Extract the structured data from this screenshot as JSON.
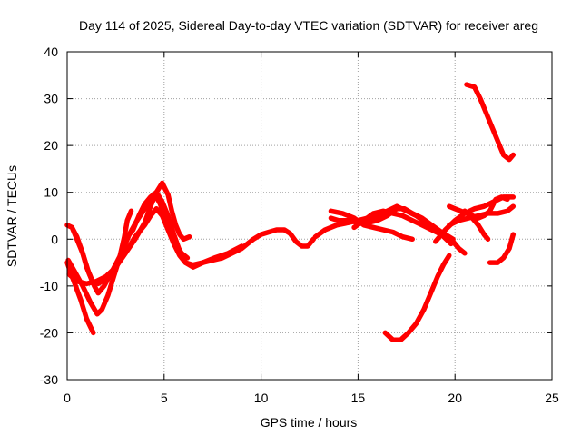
{
  "chart_data": {
    "type": "scatter",
    "title": "Day 114 of 2025, Sidereal Day-to-day VTEC variation (SDTVAR) for receiver areg",
    "xlabel": "GPS time / hours",
    "ylabel": "SDTVAR / TECUs",
    "xlim": [
      0,
      25
    ],
    "ylim": [
      -30,
      40
    ],
    "xticks": [
      0,
      5,
      10,
      15,
      20,
      25
    ],
    "yticks": [
      -30,
      -20,
      -10,
      0,
      10,
      20,
      30,
      40
    ],
    "grid": true,
    "marker_color": "#ff0000",
    "series": [
      {
        "name": "track-1",
        "points": [
          [
            0.0,
            3.0
          ],
          [
            0.25,
            2.5
          ],
          [
            0.5,
            0.5
          ],
          [
            0.8,
            -3.0
          ],
          [
            1.1,
            -7.0
          ],
          [
            1.4,
            -10.0
          ],
          [
            1.6,
            -11.5
          ],
          [
            1.9,
            -10.0
          ],
          [
            2.3,
            -7.0
          ],
          [
            2.8,
            -3.0
          ],
          [
            3.2,
            1.0
          ],
          [
            3.6,
            4.0
          ],
          [
            4.0,
            6.5
          ],
          [
            4.3,
            8.5
          ],
          [
            4.6,
            9.0
          ],
          [
            4.8,
            7.5
          ],
          [
            5.0,
            5.0
          ],
          [
            5.3,
            2.0
          ],
          [
            5.6,
            -1.0
          ],
          [
            5.9,
            -3.0
          ],
          [
            6.2,
            -4.0
          ]
        ]
      },
      {
        "name": "track-2",
        "points": [
          [
            0.0,
            -5.0
          ],
          [
            0.3,
            -8.5
          ],
          [
            0.7,
            -13.0
          ],
          [
            1.0,
            -17.0
          ],
          [
            1.35,
            -20.0
          ]
        ]
      },
      {
        "name": "track-3",
        "points": [
          [
            0.05,
            -4.5
          ],
          [
            0.4,
            -7.0
          ],
          [
            0.8,
            -10.0
          ],
          [
            1.2,
            -13.5
          ],
          [
            1.55,
            -16.0
          ],
          [
            1.8,
            -15.0
          ],
          [
            2.1,
            -12.0
          ],
          [
            2.4,
            -8.0
          ],
          [
            2.7,
            -4.0
          ],
          [
            2.95,
            0.5
          ],
          [
            3.1,
            4.0
          ],
          [
            3.3,
            6.0
          ]
        ]
      },
      {
        "name": "track-4",
        "points": [
          [
            0.3,
            2.0
          ],
          [
            0.5,
            0.0
          ],
          [
            0.8,
            -3.0
          ],
          [
            1.0,
            -6.0
          ],
          [
            1.3,
            -9.0
          ],
          [
            1.6,
            -9.5
          ],
          [
            2.0,
            -8.5
          ],
          [
            2.5,
            -6.0
          ],
          [
            3.0,
            -3.0
          ],
          [
            3.5,
            0.0
          ],
          [
            4.0,
            3.5
          ],
          [
            4.3,
            7.0
          ],
          [
            4.6,
            10.0
          ],
          [
            4.9,
            12.0
          ],
          [
            5.2,
            9.5
          ],
          [
            5.4,
            6.0
          ],
          [
            5.6,
            3.0
          ],
          [
            5.8,
            1.0
          ],
          [
            6.0,
            0.0
          ],
          [
            6.3,
            0.5
          ]
        ]
      },
      {
        "name": "track-5",
        "points": [
          [
            0.1,
            -7.5
          ],
          [
            0.5,
            -9.0
          ],
          [
            1.0,
            -9.5
          ],
          [
            1.5,
            -9.0
          ],
          [
            2.0,
            -8.0
          ],
          [
            2.5,
            -6.0
          ],
          [
            3.0,
            -3.0
          ],
          [
            3.5,
            0.5
          ],
          [
            4.0,
            3.0
          ],
          [
            4.3,
            5.0
          ],
          [
            4.6,
            6.5
          ],
          [
            4.9,
            5.0
          ],
          [
            5.2,
            2.0
          ],
          [
            5.5,
            -1.0
          ],
          [
            5.8,
            -3.5
          ],
          [
            6.1,
            -5.0
          ],
          [
            6.5,
            -5.5
          ],
          [
            7.0,
            -5.0
          ],
          [
            7.5,
            -4.5
          ],
          [
            8.0,
            -4.0
          ],
          [
            8.5,
            -3.0
          ],
          [
            9.0,
            -2.0
          ],
          [
            9.3,
            -1.0
          ],
          [
            9.6,
            0.0
          ],
          [
            10.0,
            1.0
          ],
          [
            10.4,
            1.5
          ],
          [
            10.8,
            2.0
          ],
          [
            11.2,
            2.0
          ],
          [
            11.5,
            1.2
          ],
          [
            11.8,
            -0.5
          ],
          [
            12.1,
            -1.5
          ],
          [
            12.4,
            -1.5
          ],
          [
            12.7,
            0.0
          ]
        ]
      },
      {
        "name": "track-6",
        "points": [
          [
            3.0,
            0.0
          ],
          [
            3.4,
            2.0
          ],
          [
            3.7,
            5.0
          ],
          [
            4.0,
            7.5
          ],
          [
            4.3,
            9.0
          ],
          [
            4.6,
            10.0
          ],
          [
            4.9,
            8.0
          ],
          [
            5.2,
            5.0
          ],
          [
            5.5,
            1.0
          ],
          [
            5.8,
            -2.5
          ],
          [
            6.1,
            -5.0
          ],
          [
            6.5,
            -6.0
          ],
          [
            7.0,
            -5.0
          ],
          [
            7.6,
            -4.0
          ],
          [
            8.3,
            -3.0
          ],
          [
            9.0,
            -1.5
          ]
        ]
      },
      {
        "name": "track-7",
        "points": [
          [
            12.8,
            0.5
          ],
          [
            13.3,
            2.0
          ],
          [
            13.9,
            3.0
          ],
          [
            14.5,
            3.5
          ],
          [
            15.0,
            4.0
          ],
          [
            15.5,
            4.5
          ],
          [
            16.0,
            5.0
          ],
          [
            16.5,
            6.0
          ],
          [
            17.0,
            7.0
          ],
          [
            17.5,
            6.0
          ],
          [
            18.0,
            5.0
          ],
          [
            18.5,
            3.5
          ],
          [
            19.0,
            2.0
          ],
          [
            19.5,
            1.0
          ],
          [
            19.9,
            0.0
          ]
        ]
      },
      {
        "name": "track-8",
        "points": [
          [
            13.6,
            6.0
          ],
          [
            14.2,
            5.5
          ],
          [
            14.8,
            4.5
          ],
          [
            15.3,
            3.0
          ],
          [
            15.8,
            2.5
          ],
          [
            16.3,
            2.0
          ],
          [
            16.8,
            1.5
          ],
          [
            17.3,
            0.5
          ],
          [
            17.8,
            0.0
          ]
        ]
      },
      {
        "name": "track-9",
        "points": [
          [
            13.6,
            4.5
          ],
          [
            14.0,
            4.0
          ],
          [
            14.5,
            4.0
          ],
          [
            15.0,
            3.5
          ],
          [
            15.5,
            3.5
          ],
          [
            16.0,
            4.0
          ],
          [
            16.5,
            5.0
          ],
          [
            17.0,
            6.5
          ],
          [
            17.4,
            6.5
          ],
          [
            17.8,
            5.5
          ],
          [
            18.3,
            4.5
          ],
          [
            18.8,
            3.0
          ],
          [
            19.3,
            1.5
          ],
          [
            19.8,
            0.0
          ],
          [
            20.2,
            -2.0
          ],
          [
            20.5,
            -3.0
          ]
        ]
      },
      {
        "name": "track-10",
        "points": [
          [
            14.8,
            2.5
          ],
          [
            15.3,
            4.0
          ],
          [
            15.8,
            5.5
          ],
          [
            16.3,
            6.0
          ],
          [
            16.8,
            5.5
          ],
          [
            17.3,
            5.0
          ],
          [
            17.8,
            4.0
          ],
          [
            18.3,
            3.0
          ],
          [
            18.8,
            2.0
          ],
          [
            19.3,
            1.0
          ],
          [
            19.8,
            -1.0
          ]
        ]
      },
      {
        "name": "track-11",
        "points": [
          [
            16.4,
            -20.0
          ],
          [
            16.8,
            -21.5
          ],
          [
            17.2,
            -21.5
          ],
          [
            17.6,
            -20.0
          ],
          [
            18.0,
            -18.0
          ],
          [
            18.4,
            -15.0
          ],
          [
            18.8,
            -11.0
          ],
          [
            19.1,
            -8.0
          ],
          [
            19.4,
            -5.5
          ],
          [
            19.7,
            -3.5
          ]
        ]
      },
      {
        "name": "track-12",
        "points": [
          [
            19.0,
            -0.5
          ],
          [
            19.5,
            2.0
          ],
          [
            20.0,
            4.0
          ],
          [
            20.5,
            5.5
          ],
          [
            21.0,
            6.5
          ],
          [
            21.5,
            7.0
          ],
          [
            22.0,
            8.0
          ],
          [
            22.5,
            9.0
          ],
          [
            23.0,
            9.0
          ]
        ]
      },
      {
        "name": "track-13",
        "points": [
          [
            19.7,
            7.0
          ],
          [
            20.0,
            6.5
          ],
          [
            20.3,
            6.0
          ],
          [
            20.6,
            5.5
          ],
          [
            20.9,
            5.0
          ],
          [
            21.2,
            4.5
          ],
          [
            21.5,
            5.0
          ],
          [
            21.8,
            6.0
          ],
          [
            22.1,
            8.5
          ],
          [
            22.4,
            9.0
          ],
          [
            22.7,
            8.5
          ]
        ]
      },
      {
        "name": "track-14",
        "points": [
          [
            19.7,
            3.0
          ],
          [
            20.2,
            4.0
          ],
          [
            20.7,
            4.5
          ],
          [
            21.2,
            5.0
          ],
          [
            21.7,
            5.5
          ],
          [
            22.2,
            5.5
          ],
          [
            22.7,
            6.0
          ],
          [
            23.0,
            7.0
          ]
        ]
      },
      {
        "name": "track-15",
        "points": [
          [
            20.5,
            6.0
          ],
          [
            20.9,
            4.5
          ],
          [
            21.2,
            3.0
          ],
          [
            21.5,
            1.0
          ],
          [
            21.7,
            0.0
          ]
        ]
      },
      {
        "name": "track-16",
        "points": [
          [
            20.6,
            33.0
          ],
          [
            21.0,
            32.5
          ],
          [
            21.3,
            30.0
          ],
          [
            21.6,
            27.0
          ],
          [
            21.9,
            24.0
          ],
          [
            22.2,
            21.0
          ],
          [
            22.5,
            18.0
          ],
          [
            22.8,
            17.0
          ],
          [
            23.0,
            18.0
          ]
        ]
      },
      {
        "name": "track-17",
        "points": [
          [
            21.8,
            -5.0
          ],
          [
            22.2,
            -5.0
          ],
          [
            22.5,
            -4.0
          ],
          [
            22.8,
            -2.0
          ],
          [
            23.0,
            1.0
          ]
        ]
      }
    ]
  }
}
